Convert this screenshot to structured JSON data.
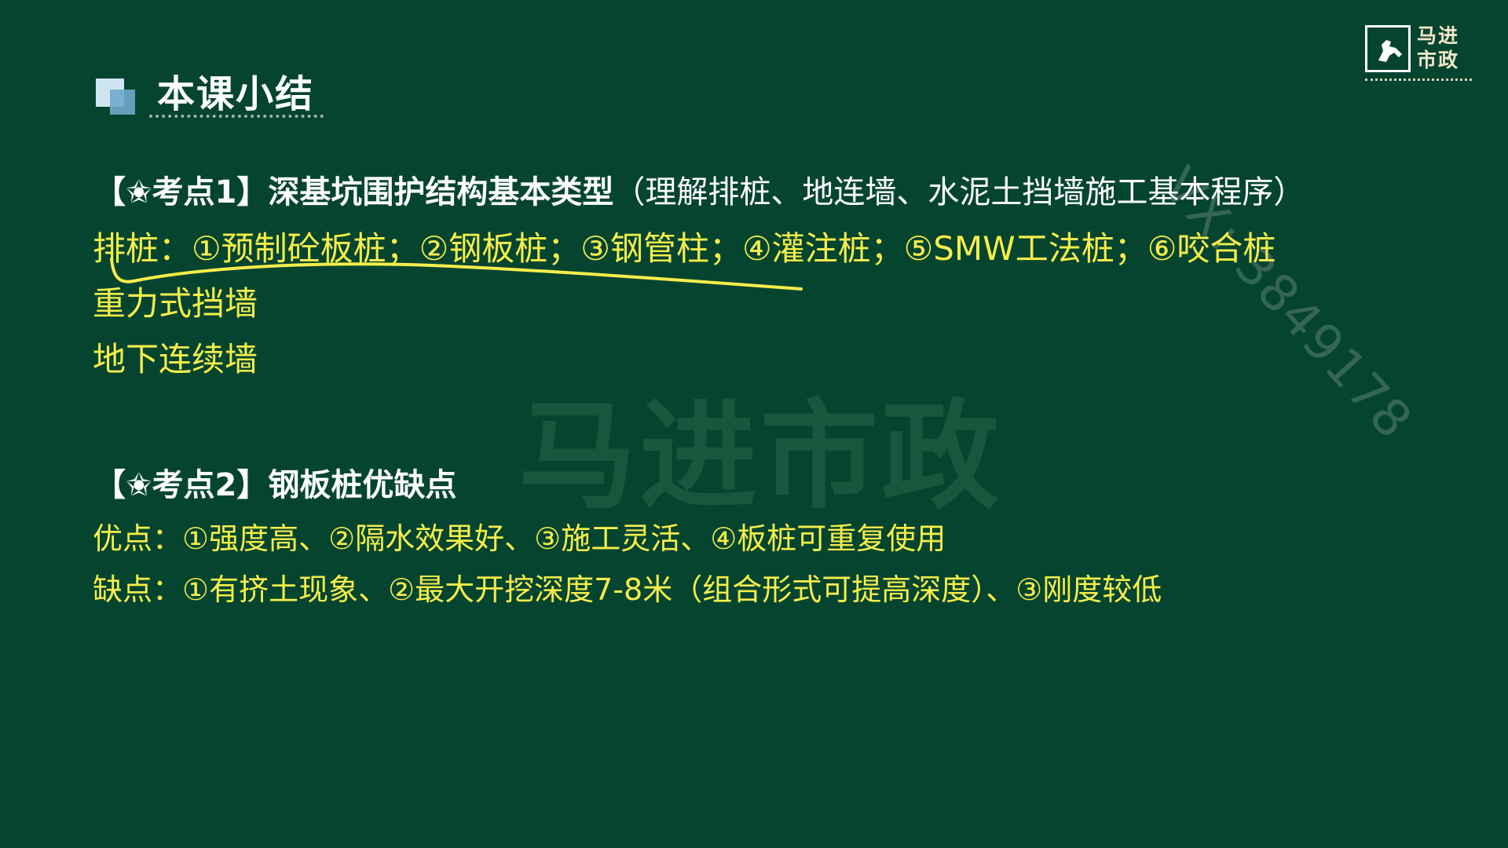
{
  "header": {
    "title": "本课小结"
  },
  "logo": {
    "name": "马进\n市政"
  },
  "watermarks": {
    "center": "马进市政",
    "diagonal": "VX: 3849178"
  },
  "point1": {
    "heading": "【✬考点1】深基坑围护结构基本类型",
    "note": "（理解排桩、地连墙、水泥土挡墙施工基本程序）",
    "lines": [
      "排桩：①预制砼板桩；②钢板桩；③钢管柱；④灌注桩；⑤SMW工法桩；⑥咬合桩",
      "重力式挡墙",
      "地下连续墙"
    ]
  },
  "point2": {
    "heading": "【✬考点2】钢板桩优缺点",
    "lines": [
      "优点：①强度高、②隔水效果好、③施工灵活、④板桩可重复使用",
      "缺点：①有挤土现象、②最大开挖深度7-8米（组合形式可提高深度）、③刚度较低"
    ]
  },
  "colors": {
    "background": "#054530",
    "heading": "#ffffff",
    "highlight": "#f6ee4a"
  }
}
